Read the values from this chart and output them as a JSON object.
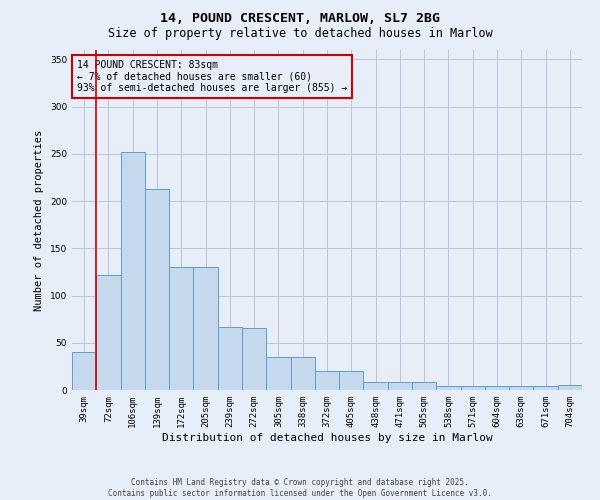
{
  "title_line1": "14, POUND CRESCENT, MARLOW, SL7 2BG",
  "title_line2": "Size of property relative to detached houses in Marlow",
  "xlabel": "Distribution of detached houses by size in Marlow",
  "ylabel": "Number of detached properties",
  "bar_color": "#c5d8ec",
  "bar_edge_color": "#5a9fd4",
  "vline_color": "#cc0000",
  "background_color": "#e8eef8",
  "categories": [
    "39sqm",
    "72sqm",
    "106sqm",
    "139sqm",
    "172sqm",
    "205sqm",
    "239sqm",
    "272sqm",
    "305sqm",
    "338sqm",
    "372sqm",
    "405sqm",
    "438sqm",
    "471sqm",
    "505sqm",
    "538sqm",
    "571sqm",
    "604sqm",
    "638sqm",
    "671sqm",
    "704sqm"
  ],
  "values": [
    40,
    122,
    252,
    213,
    130,
    130,
    67,
    66,
    35,
    35,
    20,
    20,
    9,
    9,
    9,
    4,
    4,
    4,
    4,
    4,
    5
  ],
  "ylim": [
    0,
    360
  ],
  "yticks": [
    0,
    50,
    100,
    150,
    200,
    250,
    300,
    350
  ],
  "annotation_text": "14 POUND CRESCENT: 83sqm\n← 7% of detached houses are smaller (60)\n93% of semi-detached houses are larger (855) →",
  "footer_text": "Contains HM Land Registry data © Crown copyright and database right 2025.\nContains public sector information licensed under the Open Government Licence v3.0.",
  "grid_color": "#b8c4d8",
  "title_fontsize": 9.5,
  "subtitle_fontsize": 8.5,
  "xlabel_fontsize": 8,
  "ylabel_fontsize": 7.5,
  "tick_fontsize": 6.5,
  "annotation_fontsize": 7,
  "footer_fontsize": 5.5
}
